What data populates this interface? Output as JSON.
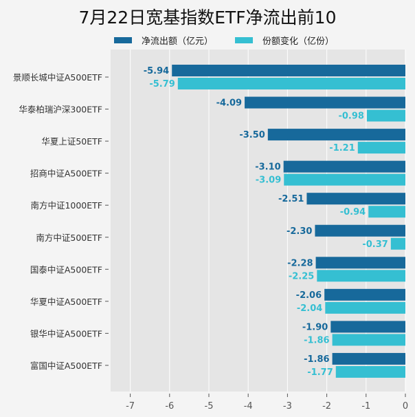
{
  "chart_data": {
    "type": "bar",
    "orientation": "horizontal",
    "title": "7月22日宽基指数ETF净流出前10",
    "categories": [
      "景顺长城中证A500ETF",
      "华泰柏瑞沪深300ETF",
      "华夏上证50ETF",
      "招商中证A500ETF",
      "南方中证1000ETF",
      "南方中证500ETF",
      "国泰中证A500ETF",
      "华夏中证A500ETF",
      "银华中证A500ETF",
      "富国中证A500ETF"
    ],
    "series": [
      {
        "name": "净流出额（亿元）",
        "color": "#17699b",
        "values": [
          -5.94,
          -4.09,
          -3.5,
          -3.1,
          -2.51,
          -2.3,
          -2.28,
          -2.06,
          -1.9,
          -1.86
        ]
      },
      {
        "name": "份额变化（亿份）",
        "color": "#35bfd2",
        "values": [
          -5.79,
          -0.98,
          -1.21,
          -3.09,
          -0.94,
          -0.37,
          -2.25,
          -2.04,
          -1.86,
          -1.77
        ]
      }
    ],
    "xlim": [
      -7.5,
      0
    ],
    "xticks": [
      "-7",
      "-6",
      "-5",
      "-4",
      "-3",
      "-2",
      "-1",
      "0"
    ],
    "xtick_values": [
      -7,
      -6,
      -5,
      -4,
      -3,
      -2,
      -1,
      0
    ],
    "grid": true,
    "legend_position": "top"
  }
}
